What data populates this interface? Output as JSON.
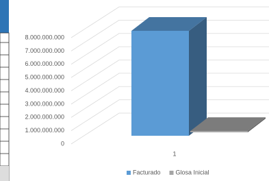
{
  "chart_data": {
    "type": "bar3d",
    "categories": [
      "1"
    ],
    "series": [
      {
        "name": "Facturado",
        "color": "#5b9bd5",
        "values": [
          7900000000
        ]
      },
      {
        "name": "Glosa Inicial",
        "color": "#a5a5a5",
        "values": [
          100000000
        ]
      }
    ],
    "ylim": [
      0,
      8000000000
    ],
    "yticks": [
      {
        "value": 0,
        "label": "0"
      },
      {
        "value": 1000000000,
        "label": "1.000.000.000"
      },
      {
        "value": 2000000000,
        "label": "2.000.000.000"
      },
      {
        "value": 3000000000,
        "label": "3.000.000.000"
      },
      {
        "value": 4000000000,
        "label": "4.000.000.000"
      },
      {
        "value": 5000000000,
        "label": "5.000.000.000"
      },
      {
        "value": 6000000000,
        "label": "6.000.000.000"
      },
      {
        "value": 7000000000,
        "label": "7.000.000.000"
      },
      {
        "value": 8000000000,
        "label": "8.000.000.000"
      }
    ],
    "grid": true,
    "legend": "bottom"
  }
}
